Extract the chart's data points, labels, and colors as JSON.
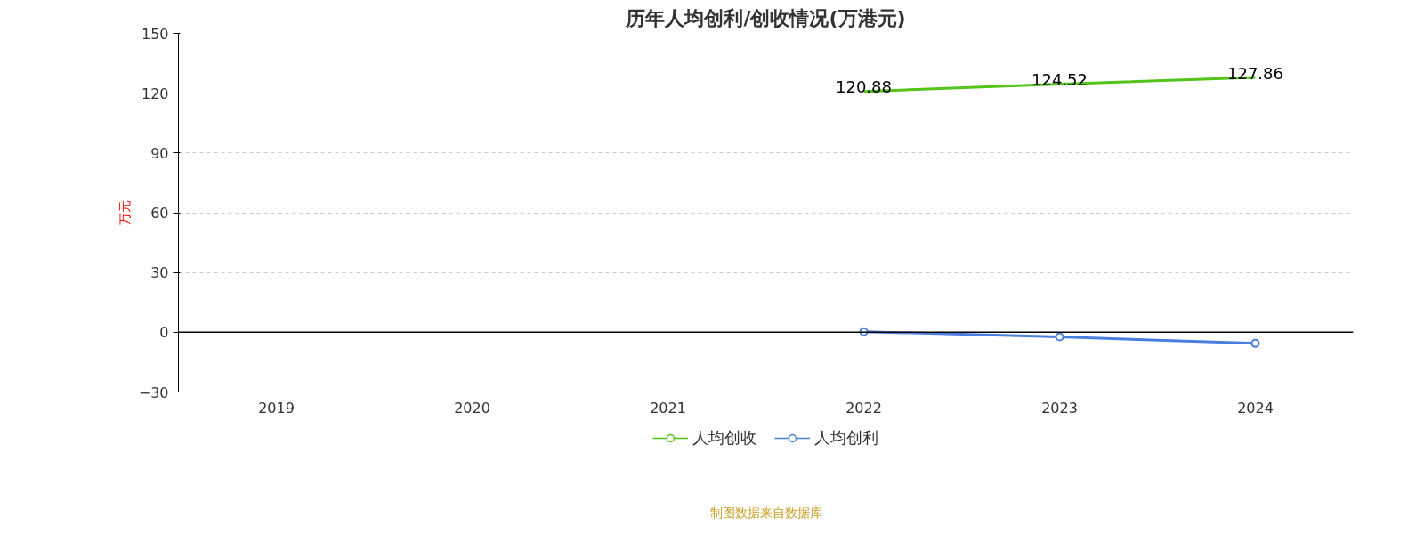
{
  "chart_data": {
    "type": "line",
    "title": "历年人均创利/创收情况(万港元)",
    "ylabel": "万元",
    "categories": [
      "2019",
      "2020",
      "2021",
      "2022",
      "2023",
      "2024"
    ],
    "series": [
      {
        "name": "人均创收",
        "color": "#52c41a",
        "marker": "none",
        "values": [
          null,
          null,
          null,
          120.88,
          124.52,
          127.86
        ],
        "value_labels": [
          null,
          null,
          null,
          "120.88",
          "124.52",
          "127.86"
        ]
      },
      {
        "name": "人均创利",
        "color": "#4a7fe0",
        "marker": "circle",
        "values": [
          null,
          null,
          null,
          0.3,
          -2.3,
          -5.6
        ]
      }
    ],
    "ylim": [
      -30,
      150
    ],
    "yticks": [
      -30,
      0,
      30,
      60,
      90,
      120,
      150
    ],
    "grid": "y",
    "legend": "bottom",
    "annotations": [
      "制图数据来自数据库"
    ]
  }
}
